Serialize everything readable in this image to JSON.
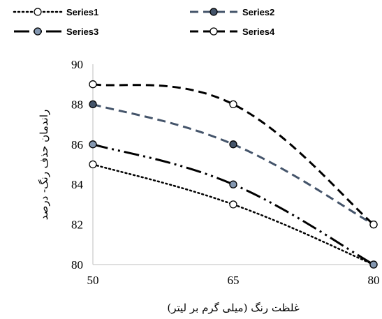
{
  "chart_data": {
    "type": "line",
    "x": [
      50,
      65,
      80
    ],
    "series": [
      {
        "name": "Series1",
        "values": [
          85,
          83,
          80
        ],
        "color": "#000000",
        "dash": "dotted",
        "marker_fill": "#ffffff"
      },
      {
        "name": "Series2",
        "values": [
          88,
          86,
          82
        ],
        "color": "#44546a",
        "dash": "dash",
        "marker_fill": "#44546a"
      },
      {
        "name": "Series3",
        "values": [
          86,
          84,
          80
        ],
        "color": "#000000",
        "dash": "long-dash-dot-dot",
        "marker_fill": "#8497b0"
      },
      {
        "name": "Series4",
        "values": [
          89,
          88,
          82
        ],
        "color": "#000000",
        "dash": "dash",
        "marker_fill": "#ffffff"
      }
    ],
    "xlabel": "(میلی گرم بر لیتر) غلظت رنگ",
    "ylabel": "راندمان حذف رنگ- درصد",
    "x_ticks": [
      "50",
      "65",
      "80"
    ],
    "y_ticks": [
      "80",
      "82",
      "84",
      "86",
      "88",
      "90"
    ],
    "xlim": [
      50,
      80
    ],
    "ylim": [
      80,
      90
    ],
    "grid": false,
    "legend_position": "top"
  }
}
